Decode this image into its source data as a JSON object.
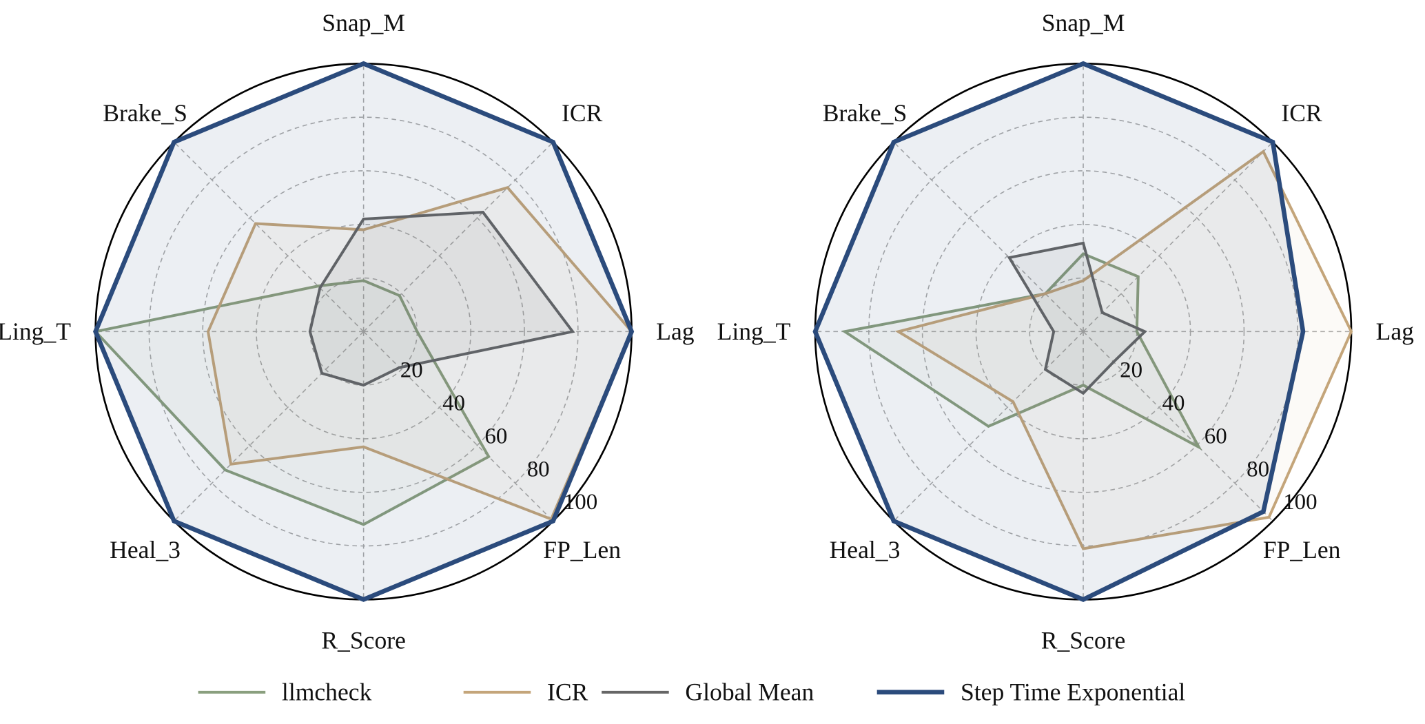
{
  "chart_data": {
    "type": "radar",
    "axes": [
      "Snap_M",
      "ICR",
      "Lag",
      "FP_Len",
      "R_Score",
      "Heal_3",
      "Ling_T",
      "Brake_S"
    ],
    "rlim": [
      0,
      100
    ],
    "rticks": [
      "20",
      "40",
      "60",
      "80",
      "100"
    ],
    "grid": true,
    "legend_position": "bottom",
    "legend": [
      "llmcheck",
      "ICR",
      "Global Mean",
      "Step Time Exponential"
    ],
    "colors": {
      "llmcheck": "#8a9f7e",
      "ICR": "#c4a57a",
      "Global Mean": "#666666",
      "Step Time Exponential": "#2b4b7c"
    },
    "charts": [
      {
        "series": [
          {
            "name": "llmcheck",
            "values": [
              19,
              19,
              20,
              66,
              72,
              73,
              100,
              24
            ]
          },
          {
            "name": "ICR",
            "values": [
              38,
              76,
              100,
              99,
              43,
              70,
              58,
              57
            ]
          },
          {
            "name": "Global Mean",
            "values": [
              42,
              63,
              78,
              19,
              20,
              22,
              20,
              23
            ]
          },
          {
            "name": "Step Time Exponential",
            "values": [
              100,
              100,
              100,
              100,
              100,
              100,
              100,
              100
            ]
          }
        ]
      },
      {
        "series": [
          {
            "name": "llmcheck",
            "values": [
              29,
              29,
              20,
              61,
              20,
              50,
              89,
              20
            ]
          },
          {
            "name": "ICR",
            "values": [
              19,
              95,
              100,
              98,
              81,
              37,
              69,
              20
            ]
          },
          {
            "name": "Global Mean",
            "values": [
              33,
              10,
              23,
              16,
              23,
              20,
              11,
              39
            ]
          },
          {
            "name": "Step Time Exponential",
            "values": [
              100,
              100,
              82,
              95,
              100,
              100,
              100,
              100
            ]
          }
        ]
      }
    ]
  }
}
